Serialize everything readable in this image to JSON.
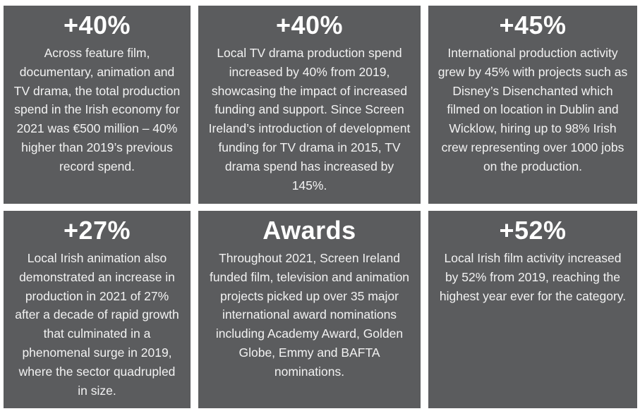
{
  "cards": [
    {
      "stat": "+40%",
      "text": "Across feature film, documentary, animation and TV drama, the total production spend in the Irish economy for 2021 was €500 million – 40% higher than 2019’s previous record spend."
    },
    {
      "stat": "+40%",
      "text": "Local TV drama production spend increased by 40% from 2019, showcasing the impact of increased funding and support. Since Screen Ireland’s introduction of development funding for TV drama in 2015, TV drama spend has increased by 145%."
    },
    {
      "stat": "+45%",
      "text": "International production activity grew by 45% with projects such as Disney’s Disenchanted which filmed on location in Dublin and Wicklow, hiring up to 98% Irish crew representing over 1000 jobs on the production."
    },
    {
      "stat": "+27%",
      "text": "Local Irish animation also demonstrated an increase in production in 2021 of 27% after a decade of rapid growth that culminated in a phenomenal surge in 2019, where the sector quadrupled in size."
    },
    {
      "stat": "Awards",
      "text": "Throughout 2021, Screen Ireland funded film, television and animation projects picked up over 35 major international award nominations including Academy Award, Golden Globe, Emmy and BAFTA nominations."
    },
    {
      "stat": "+52%",
      "text": "Local Irish film activity increased by 52% from 2019, reaching the highest year ever for the category."
    }
  ],
  "colors": {
    "card_background": "#5b5c5e",
    "text": "#ffffff"
  }
}
